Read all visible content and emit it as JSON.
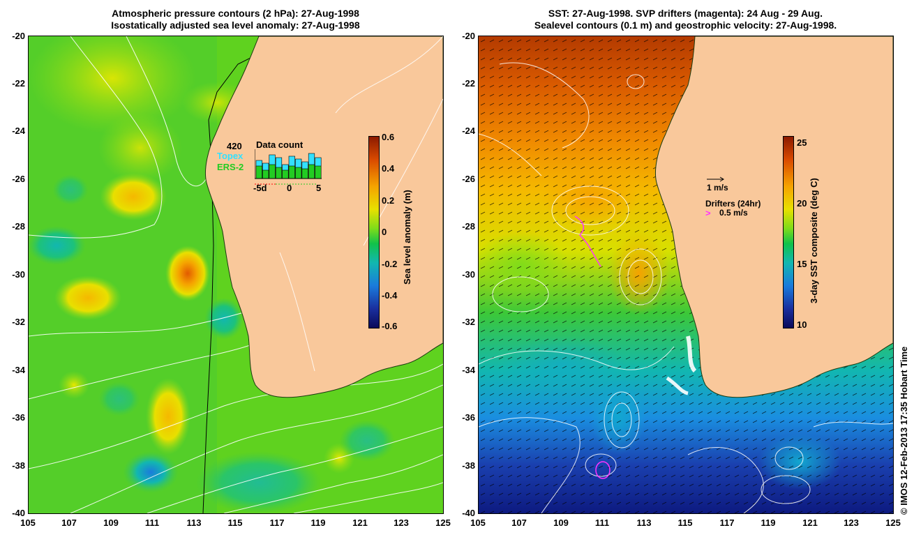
{
  "left_panel": {
    "title_line1": "Atmospheric pressure contours (2 hPa): 27-Aug-1998",
    "title_line2": "Isostatically adjusted sea level anomaly: 27-Aug-1998",
    "y_ticks": [
      "-20",
      "-22",
      "-24",
      "-26",
      "-28",
      "-30",
      "-32",
      "-34",
      "-36",
      "-38",
      "-40"
    ],
    "x_ticks": [
      "105",
      "107",
      "109",
      "111",
      "113",
      "115",
      "117",
      "119",
      "121",
      "123",
      "125"
    ],
    "inset": {
      "max_label": "420",
      "title": "Data count",
      "series1": "Topex",
      "series2": "ERS-2",
      "x_tick_labels": [
        "-5d",
        "0",
        "5"
      ],
      "series1_color": "#33e0ff",
      "series2_color": "#22cc22"
    },
    "colorbar": {
      "label": "Sea level anomaly (m)",
      "ticks": [
        "0.6",
        "0.4",
        "0.2",
        "0",
        "-0.2",
        "-0.4",
        "-0.6"
      ],
      "colors_top_to_bottom": [
        "#8b1a00",
        "#d94a00",
        "#f5a300",
        "#e8e000",
        "#7fdc1a",
        "#11c24a",
        "#12b7b0",
        "#1a7bdc",
        "#1a2f9e",
        "#0a0a5a"
      ]
    },
    "sea_color": "#5fd21f",
    "land_color": "#f9c89b"
  },
  "right_panel": {
    "title_line1": "SST: 27-Aug-1998. SVP drifters (magenta): 24 Aug - 29 Aug.",
    "title_line2": "Sealevel contours (0.1 m) and geostrophic velocity: 27-Aug-1998.",
    "y_ticks": [
      "-20",
      "-22",
      "-24",
      "-26",
      "-28",
      "-30",
      "-32",
      "-34",
      "-36",
      "-38",
      "-40"
    ],
    "x_ticks": [
      "105",
      "107",
      "109",
      "111",
      "113",
      "115",
      "117",
      "119",
      "121",
      "123",
      "125"
    ],
    "velocity_legend": "1 m/s",
    "drifters_legend": "Drifters (24hr)",
    "drifters_speed": "0.5 m/s",
    "drifter_color": "#ff33ff",
    "colorbar": {
      "label": "3-day SST composite (deg C)",
      "ticks": [
        "25",
        "20",
        "15",
        "10"
      ],
      "colors_top_to_bottom": [
        "#8b1a00",
        "#d94a00",
        "#f5a300",
        "#e8e000",
        "#7fdc1a",
        "#11c24a",
        "#12b7b0",
        "#1a7bdc",
        "#1a2f9e",
        "#0a0a5a"
      ]
    },
    "land_color": "#f9c89b"
  },
  "credit": "© IMOS 12-Feb-2013 17:35 Hobart Time"
}
